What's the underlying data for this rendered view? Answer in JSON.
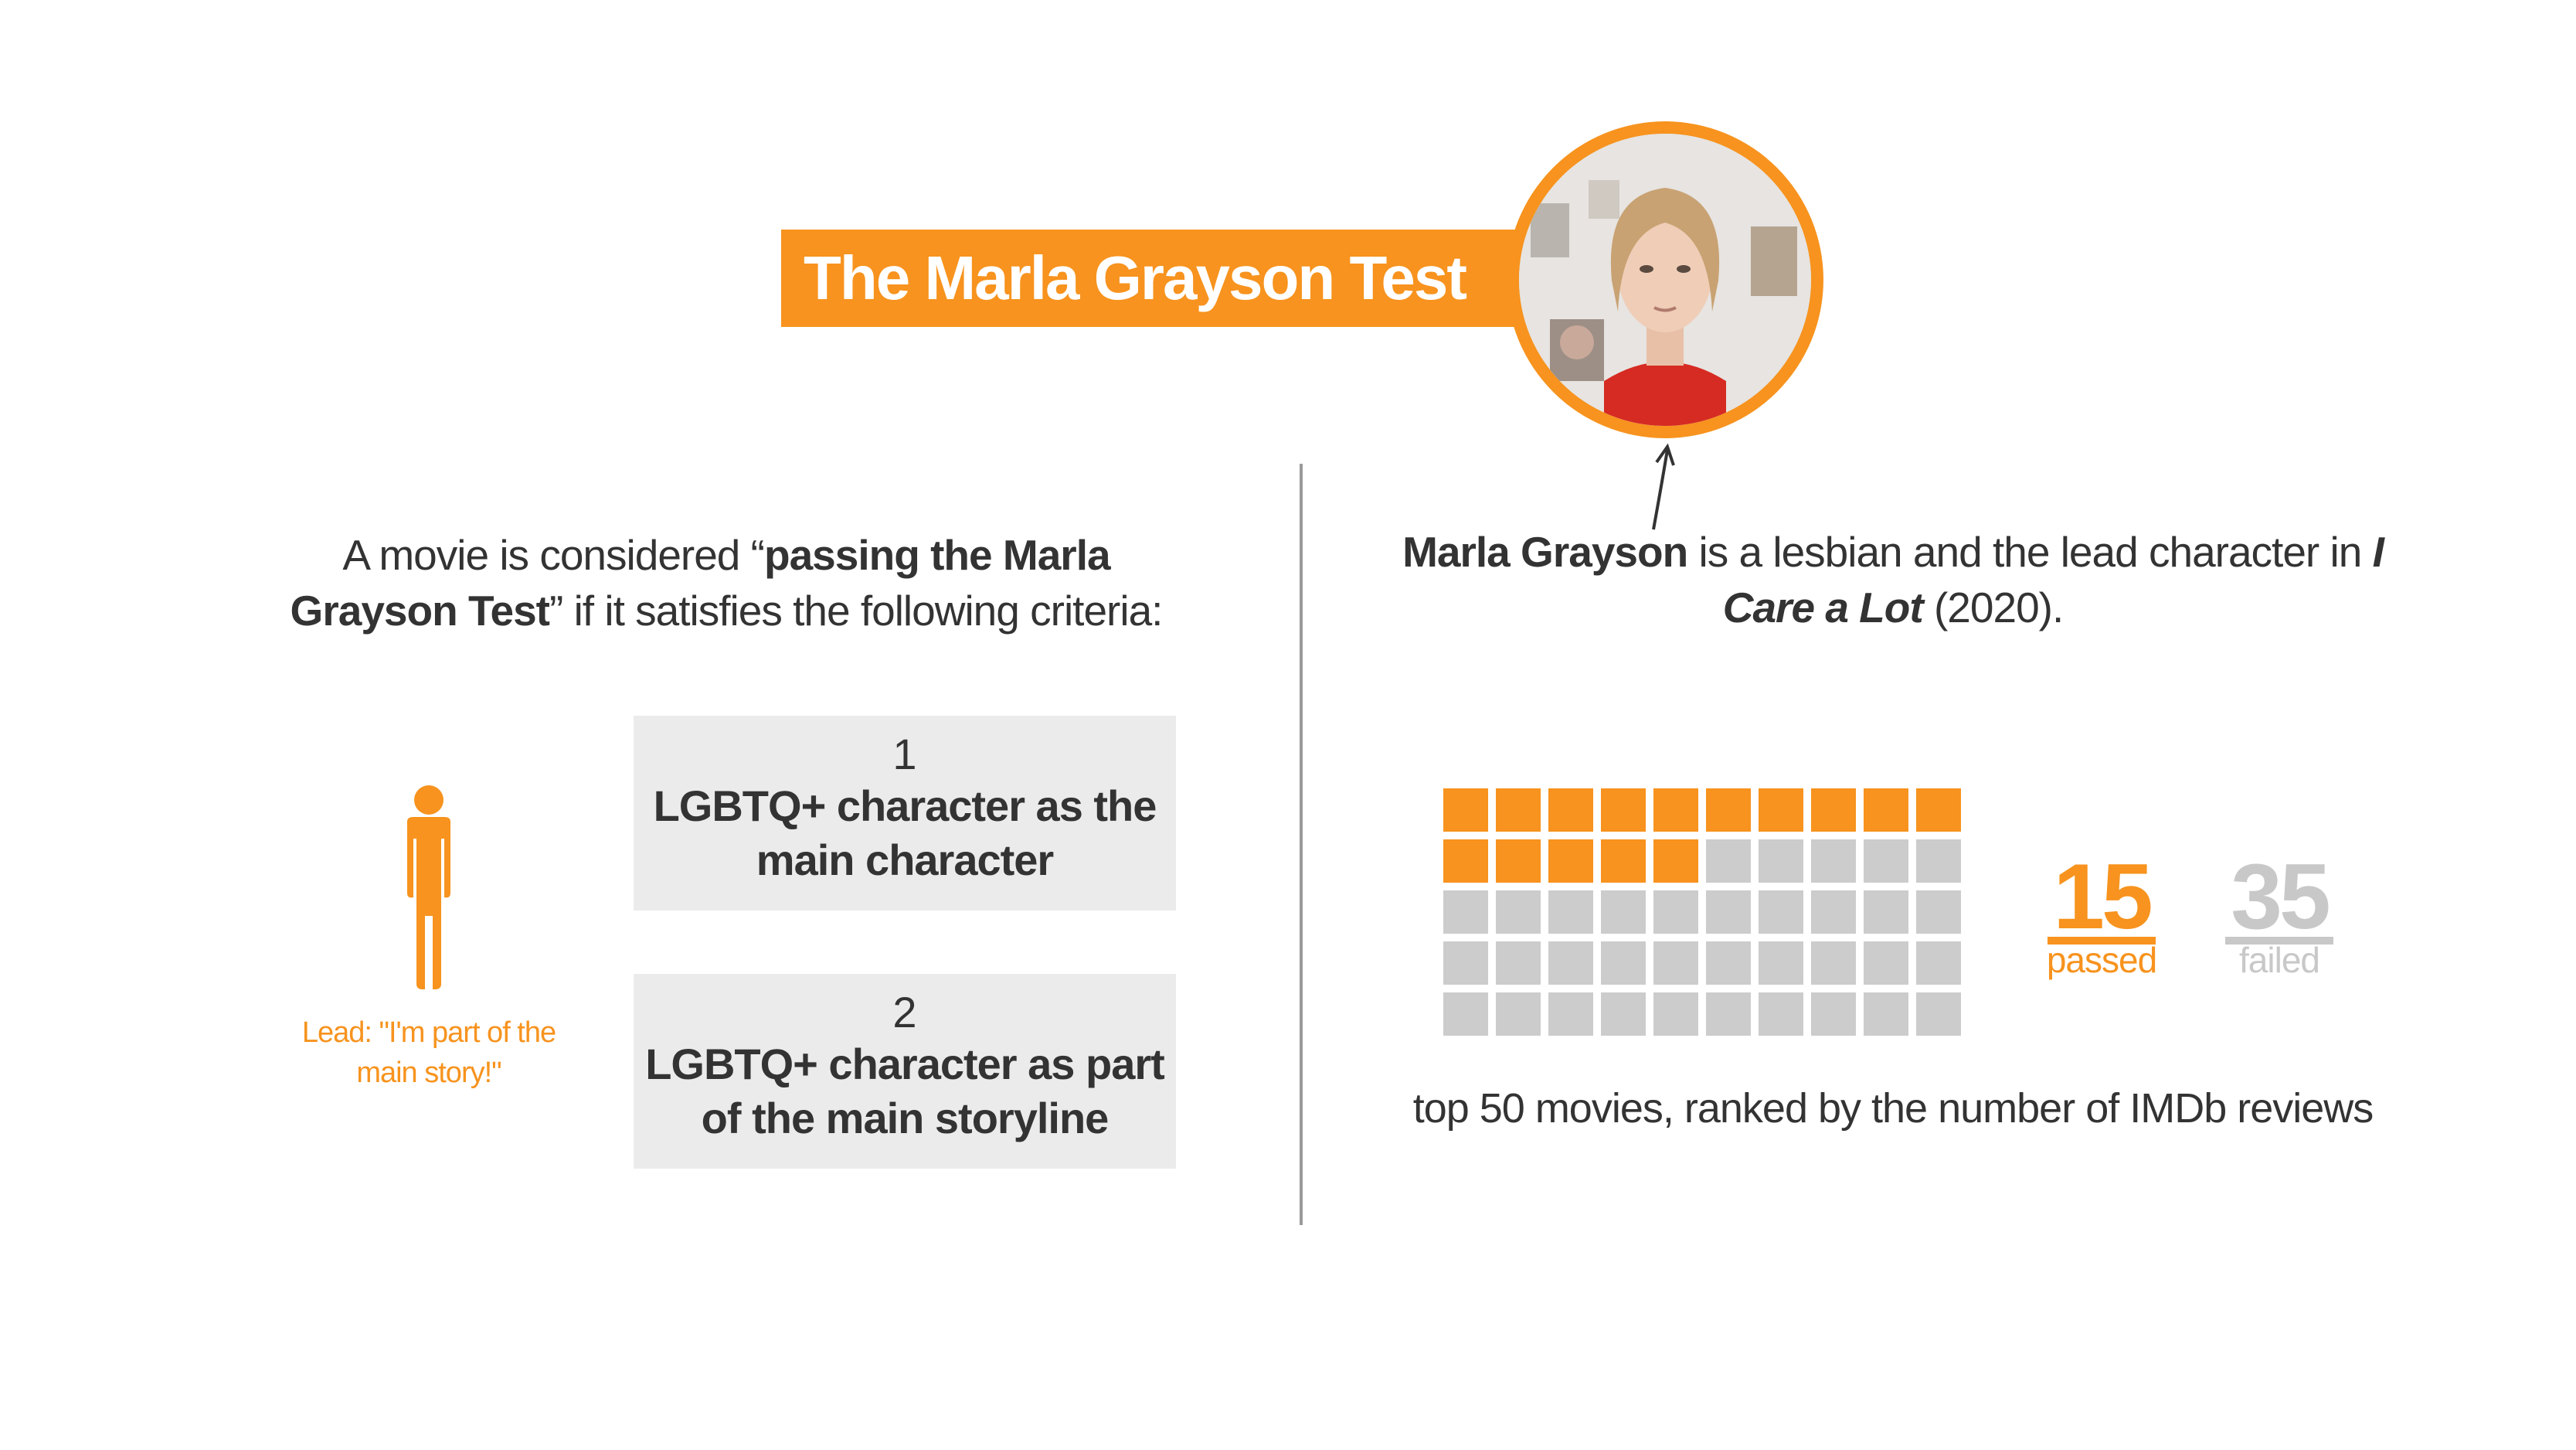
{
  "title": "The Marla Grayson Test",
  "intro": {
    "prefix": "A movie is considered “",
    "bold": "passing the Marla Grayson Test",
    "suffix": "” if it satisfies the following criteria:"
  },
  "person": {
    "icon": "person-icon",
    "caption": "Lead: \"I'm part of the main story!\""
  },
  "criteria": [
    {
      "number": "1",
      "label": "LGBTQ+ character as the main character"
    },
    {
      "number": "2",
      "label": "LGBTQ+ character as part of the main storyline"
    }
  ],
  "portrait": {
    "icon": "marla-grayson-portrait"
  },
  "description": {
    "name": "Marla Grayson",
    "text1": " is a lesbian and the lead character in ",
    "film": "I Care a Lot",
    "text2": " (2020)."
  },
  "chart_data": {
    "type": "waffle",
    "total": 50,
    "columns": 10,
    "rows": 5,
    "categories": [
      "passed",
      "failed"
    ],
    "values": [
      15,
      35
    ],
    "colors": {
      "passed": "#F7931E",
      "failed": "#CCCCCC"
    },
    "caption": "top 50 movies, ranked by the number of IMDb reviews"
  },
  "colors": {
    "accent": "#F7931E",
    "failed": "#CCCCCC",
    "box": "#EBEBEB",
    "text": "#333333"
  }
}
